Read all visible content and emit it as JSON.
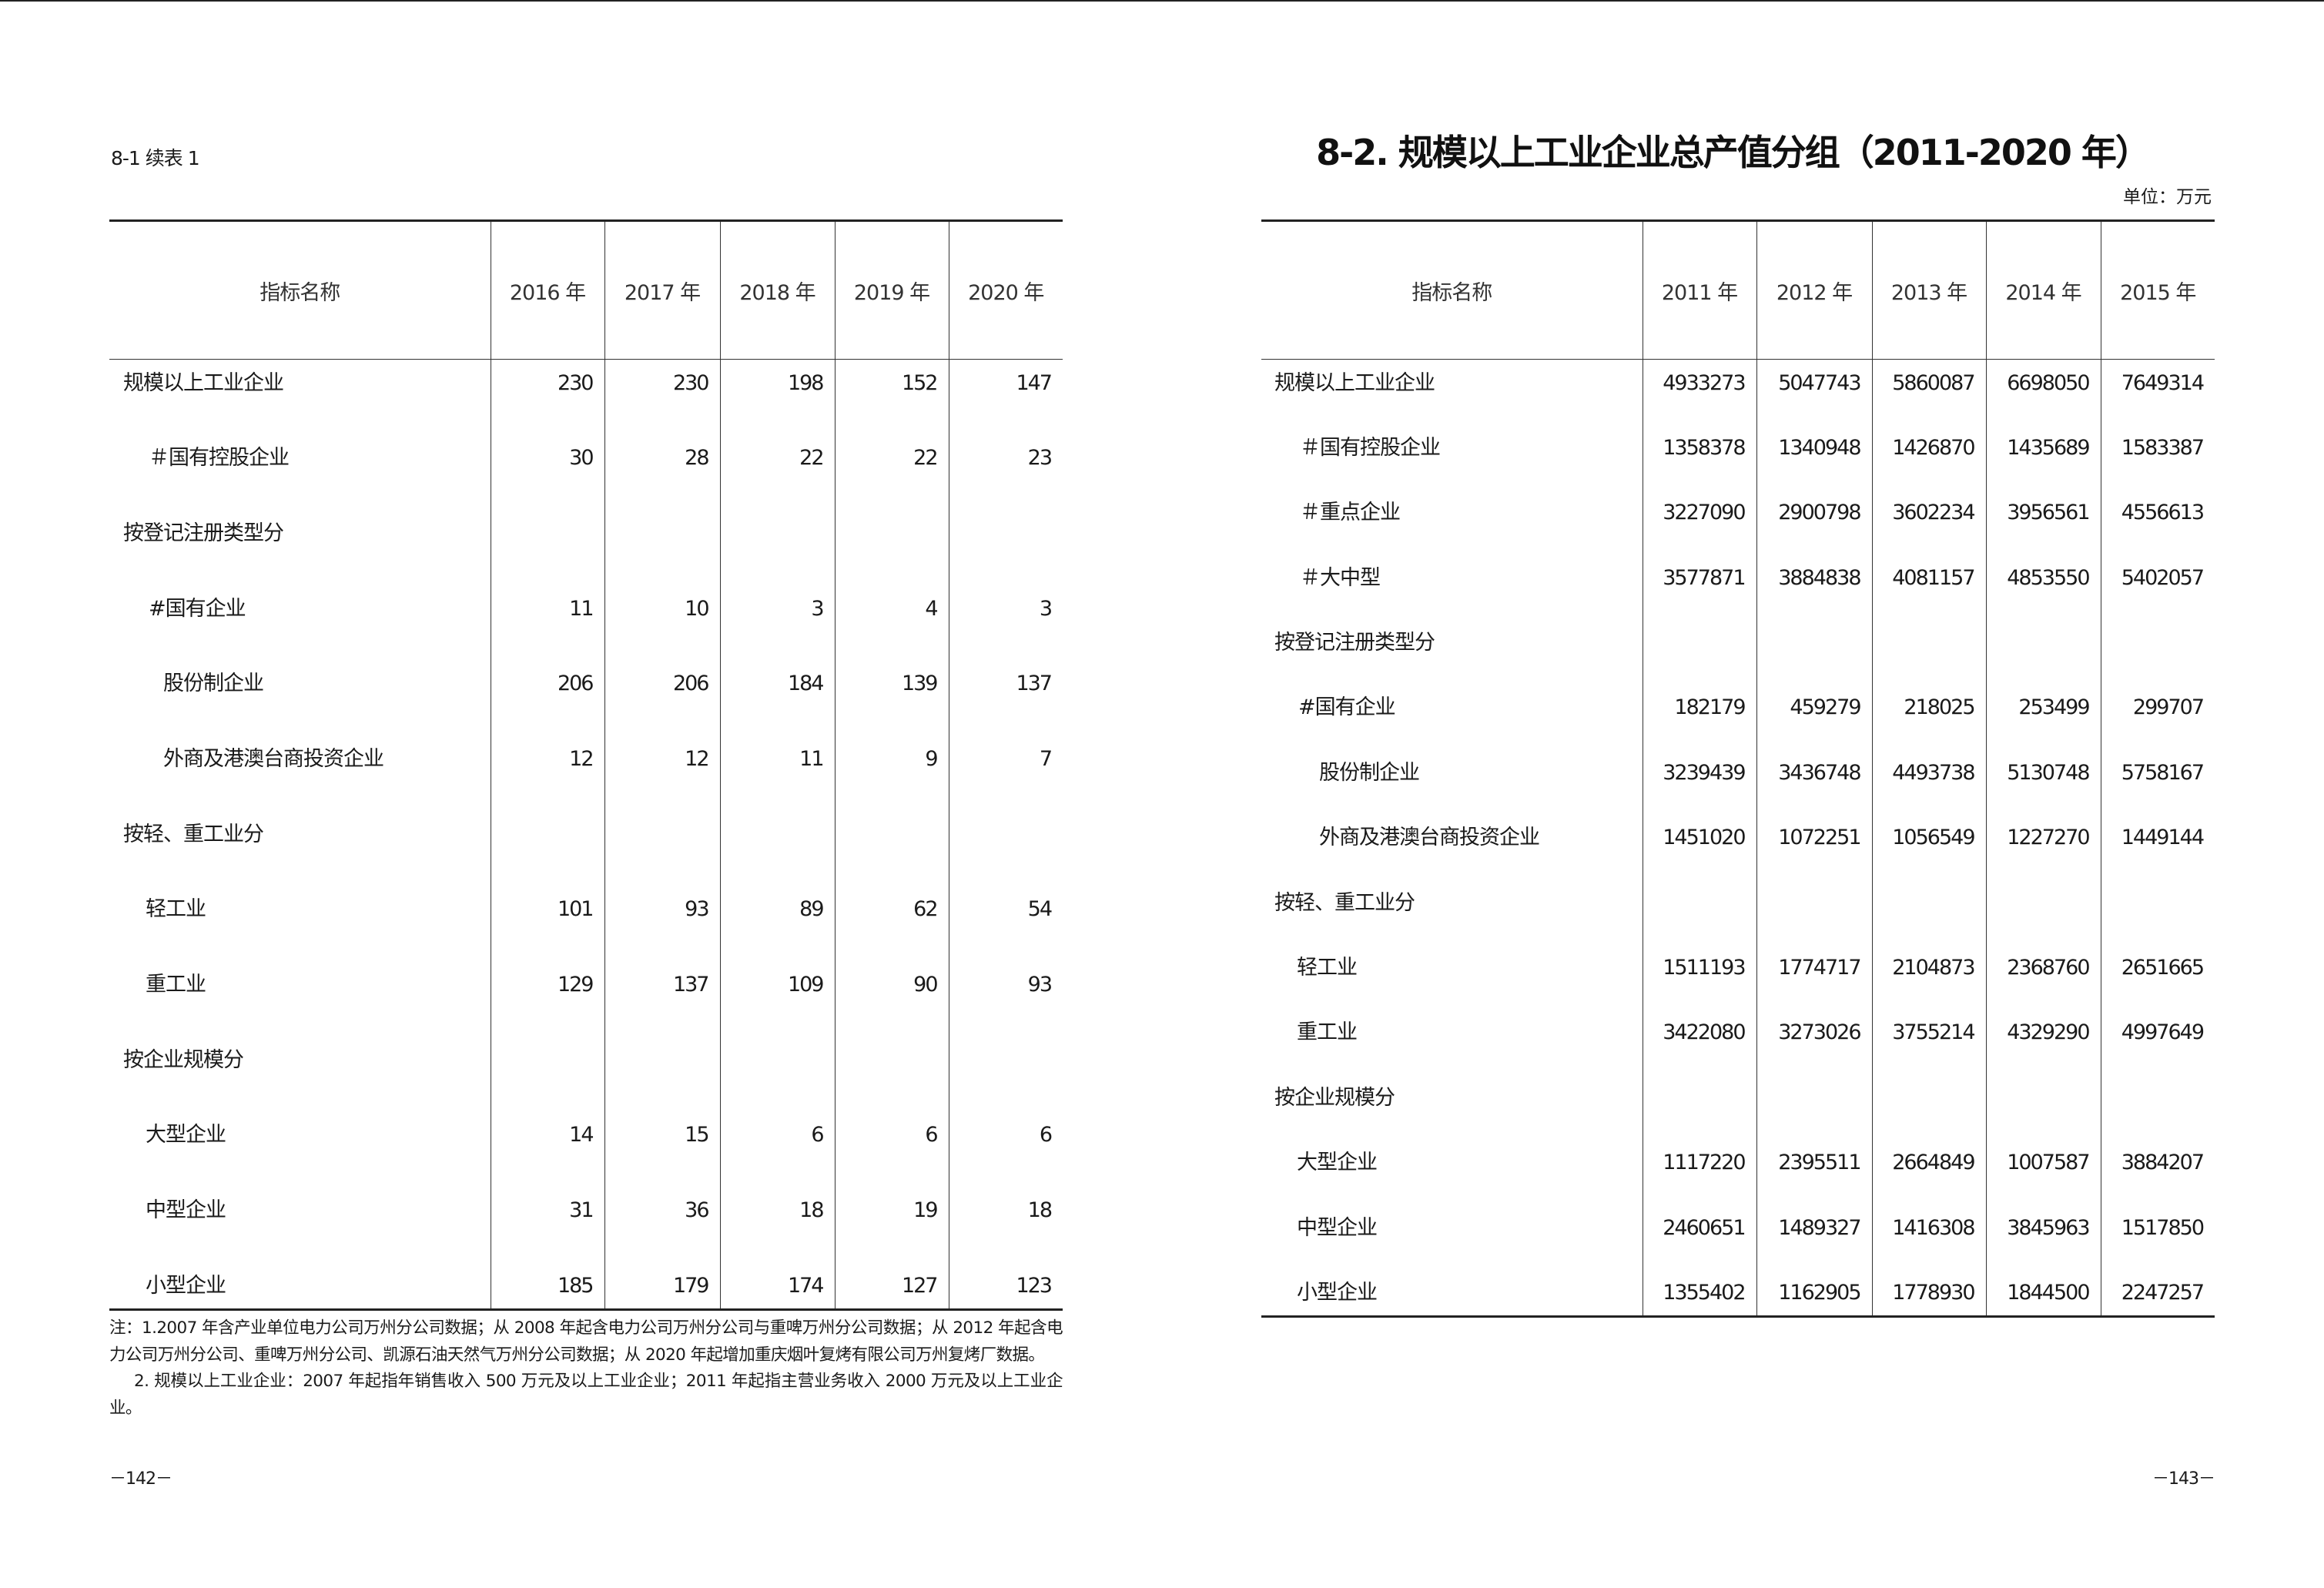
{
  "left_page": {
    "caption": "8-1 续表 1",
    "table": {
      "header_label": "指标名称",
      "columns": [
        "2016 年",
        "2017 年",
        "2018 年",
        "2019 年",
        "2020 年"
      ],
      "rows": [
        {
          "label": "规模以上工业企业",
          "values": [
            "230",
            "230",
            "198",
            "152",
            "147"
          ]
        },
        {
          "label": "＃国有控股企业",
          "values": [
            "30",
            "28",
            "22",
            "22",
            "23"
          ]
        },
        {
          "label": "按登记注册类型分",
          "values": [
            "",
            "",
            "",
            "",
            ""
          ]
        },
        {
          "label": "#国有企业",
          "values": [
            "11",
            "10",
            "3",
            "4",
            "3"
          ]
        },
        {
          "label": "股份制企业",
          "values": [
            "206",
            "206",
            "184",
            "139",
            "137"
          ]
        },
        {
          "label": "外商及港澳台商投资企业",
          "values": [
            "12",
            "12",
            "11",
            "9",
            "7"
          ]
        },
        {
          "label": "按轻、重工业分",
          "values": [
            "",
            "",
            "",
            "",
            ""
          ]
        },
        {
          "label": "轻工业",
          "values": [
            "101",
            "93",
            "89",
            "62",
            "54"
          ]
        },
        {
          "label": "重工业",
          "values": [
            "129",
            "137",
            "109",
            "90",
            "93"
          ]
        },
        {
          "label": "按企业规模分",
          "values": [
            "",
            "",
            "",
            "",
            ""
          ]
        },
        {
          "label": "大型企业",
          "values": [
            "14",
            "15",
            "6",
            "6",
            "6"
          ]
        },
        {
          "label": "中型企业",
          "values": [
            "31",
            "36",
            "18",
            "19",
            "18"
          ]
        },
        {
          "label": "小型企业",
          "values": [
            "185",
            "179",
            "174",
            "127",
            "123"
          ]
        }
      ]
    },
    "notes": [
      "注：1.2007 年含产业单位电力公司万州分公司数据；从 2008 年起含电力公司万州分公司与重啤万州分公司数据；从 2012 年起含电力公司万州分公司、重啤万州分公司、凯源石油天然气万州分公司数据；从 2020 年起增加重庆烟叶复烤有限公司万州复烤厂数据。",
      "2. 规模以上工业企业：2007 年起指年销售收入 500 万元及以上工业企业；2011 年起指主营业务收入 2000 万元及以上工业企业。"
    ],
    "page_number": "－142－"
  },
  "right_page": {
    "title": "8-2. 规模以上工业企业总产值分组（2011-2020 年）",
    "unit": "单位：万元",
    "table": {
      "header_label": "指标名称",
      "columns": [
        "2011 年",
        "2012 年",
        "2013 年",
        "2014 年",
        "2015 年"
      ],
      "rows": [
        {
          "label": "规模以上工业企业",
          "values": [
            "4933273",
            "5047743",
            "5860087",
            "6698050",
            "7649314"
          ]
        },
        {
          "label": "＃国有控股企业",
          "values": [
            "1358378",
            "1340948",
            "1426870",
            "1435689",
            "1583387"
          ]
        },
        {
          "label": "＃重点企业",
          "values": [
            "3227090",
            "2900798",
            "3602234",
            "3956561",
            "4556613"
          ]
        },
        {
          "label": "＃大中型",
          "values": [
            "3577871",
            "3884838",
            "4081157",
            "4853550",
            "5402057"
          ]
        },
        {
          "label": "按登记注册类型分",
          "values": [
            "",
            "",
            "",
            "",
            ""
          ]
        },
        {
          "label": "#国有企业",
          "values": [
            "182179",
            "459279",
            "218025",
            "253499",
            "299707"
          ]
        },
        {
          "label": "股份制企业",
          "values": [
            "3239439",
            "3436748",
            "4493738",
            "5130748",
            "5758167"
          ]
        },
        {
          "label": "外商及港澳台商投资企业",
          "values": [
            "1451020",
            "1072251",
            "1056549",
            "1227270",
            "1449144"
          ]
        },
        {
          "label": "按轻、重工业分",
          "values": [
            "",
            "",
            "",
            "",
            ""
          ]
        },
        {
          "label": "轻工业",
          "values": [
            "1511193",
            "1774717",
            "2104873",
            "2368760",
            "2651665"
          ]
        },
        {
          "label": "重工业",
          "values": [
            "3422080",
            "3273026",
            "3755214",
            "4329290",
            "4997649"
          ]
        },
        {
          "label": "按企业规模分",
          "values": [
            "",
            "",
            "",
            "",
            ""
          ]
        },
        {
          "label": "大型企业",
          "values": [
            "1117220",
            "2395511",
            "2664849",
            "1007587",
            "3884207"
          ]
        },
        {
          "label": "中型企业",
          "values": [
            "2460651",
            "1489327",
            "1416308",
            "3845963",
            "1517850"
          ]
        },
        {
          "label": "小型企业",
          "values": [
            "1355402",
            "1162905",
            "1778930",
            "1844500",
            "2247257"
          ]
        }
      ]
    },
    "page_number": "－143－"
  }
}
